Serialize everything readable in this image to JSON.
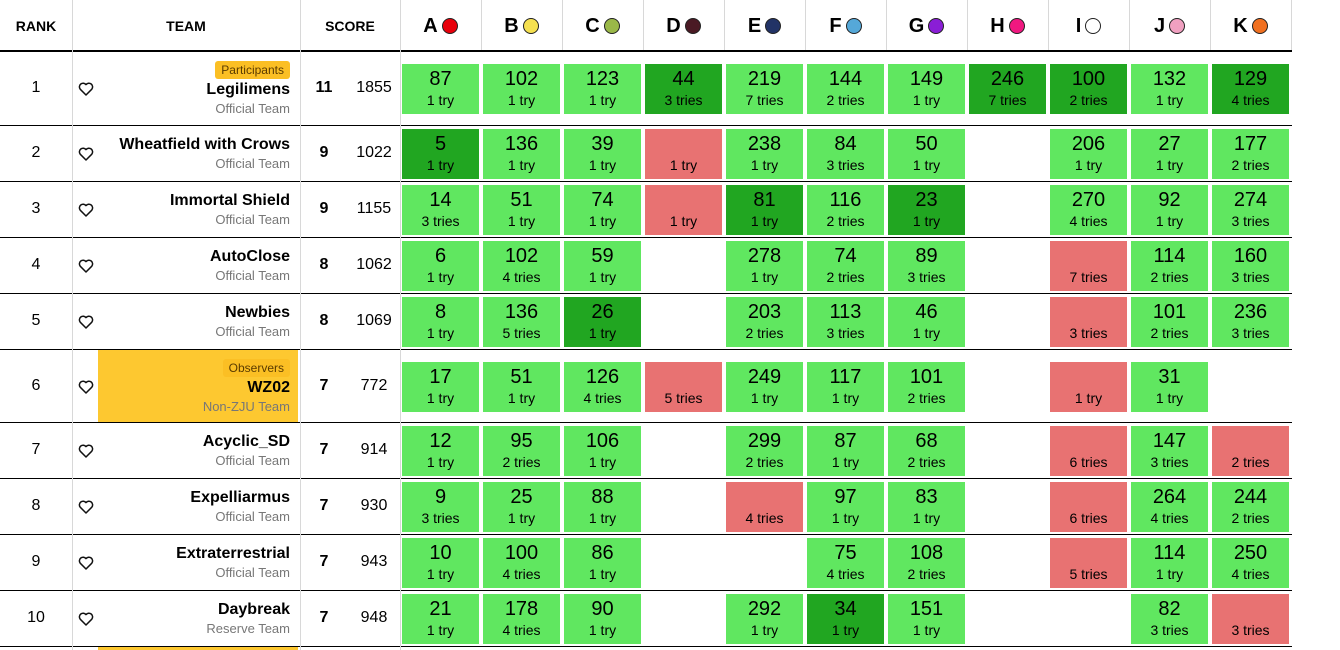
{
  "header": {
    "rank": "RANK",
    "team": "TEAM",
    "score": "SCORE",
    "problems": [
      {
        "letter": "A",
        "color": "#e8000b"
      },
      {
        "letter": "B",
        "color": "#f5e050"
      },
      {
        "letter": "C",
        "color": "#9ab848"
      },
      {
        "letter": "D",
        "color": "#4a1a24"
      },
      {
        "letter": "E",
        "color": "#223366"
      },
      {
        "letter": "F",
        "color": "#55a8d8"
      },
      {
        "letter": "G",
        "color": "#8a1ed6"
      },
      {
        "letter": "H",
        "color": "#f01880"
      },
      {
        "letter": "I",
        "color": "#ffffff"
      },
      {
        "letter": "J",
        "color": "#f0a0c0"
      },
      {
        "letter": "K",
        "color": "#f07020"
      }
    ]
  },
  "rows": [
    {
      "rank": "1",
      "tag": "Participants",
      "name": "Legilimens",
      "org": "Official Team",
      "solved": "11",
      "penalty": "1855",
      "observer": false,
      "cells": [
        [
          "ac",
          "87",
          "1 try"
        ],
        [
          "ac",
          "102",
          "1 try"
        ],
        [
          "ac",
          "123",
          "1 try"
        ],
        [
          "fb",
          "44",
          "3 tries"
        ],
        [
          "ac",
          "219",
          "7 tries"
        ],
        [
          "ac",
          "144",
          "2 tries"
        ],
        [
          "ac",
          "149",
          "1 try"
        ],
        [
          "fb",
          "246",
          "7 tries"
        ],
        [
          "fb",
          "100",
          "2 tries"
        ],
        [
          "ac",
          "132",
          "1 try"
        ],
        [
          "fb",
          "129",
          "4 tries"
        ]
      ]
    },
    {
      "rank": "2",
      "tag": "",
      "name": "Wheatfield with Crows",
      "org": "Official Team",
      "solved": "9",
      "penalty": "1022",
      "observer": false,
      "cells": [
        [
          "fb",
          "5",
          "1 try"
        ],
        [
          "ac",
          "136",
          "1 try"
        ],
        [
          "ac",
          "39",
          "1 try"
        ],
        [
          "wa",
          "",
          "1 try"
        ],
        [
          "ac",
          "238",
          "1 try"
        ],
        [
          "ac",
          "84",
          "3 tries"
        ],
        [
          "ac",
          "50",
          "1 try"
        ],
        [
          "",
          "",
          ""
        ],
        [
          "ac",
          "206",
          "1 try"
        ],
        [
          "ac",
          "27",
          "1 try"
        ],
        [
          "ac",
          "177",
          "2 tries"
        ]
      ]
    },
    {
      "rank": "3",
      "tag": "",
      "name": "Immortal Shield",
      "org": "Official Team",
      "solved": "9",
      "penalty": "1155",
      "observer": false,
      "cells": [
        [
          "ac",
          "14",
          "3 tries"
        ],
        [
          "ac",
          "51",
          "1 try"
        ],
        [
          "ac",
          "74",
          "1 try"
        ],
        [
          "wa",
          "",
          "1 try"
        ],
        [
          "fb",
          "81",
          "1 try"
        ],
        [
          "ac",
          "116",
          "2 tries"
        ],
        [
          "fb",
          "23",
          "1 try"
        ],
        [
          "",
          "",
          ""
        ],
        [
          "ac",
          "270",
          "4 tries"
        ],
        [
          "ac",
          "92",
          "1 try"
        ],
        [
          "ac",
          "274",
          "3 tries"
        ]
      ]
    },
    {
      "rank": "4",
      "tag": "",
      "name": "AutoClose",
      "org": "Official Team",
      "solved": "8",
      "penalty": "1062",
      "observer": false,
      "cells": [
        [
          "ac",
          "6",
          "1 try"
        ],
        [
          "ac",
          "102",
          "4 tries"
        ],
        [
          "ac",
          "59",
          "1 try"
        ],
        [
          "",
          "",
          ""
        ],
        [
          "ac",
          "278",
          "1 try"
        ],
        [
          "ac",
          "74",
          "2 tries"
        ],
        [
          "ac",
          "89",
          "3 tries"
        ],
        [
          "",
          "",
          ""
        ],
        [
          "wa",
          "",
          "7 tries"
        ],
        [
          "ac",
          "114",
          "2 tries"
        ],
        [
          "ac",
          "160",
          "3 tries"
        ]
      ]
    },
    {
      "rank": "5",
      "tag": "",
      "name": "Newbies",
      "org": "Official Team",
      "solved": "8",
      "penalty": "1069",
      "observer": false,
      "cells": [
        [
          "ac",
          "8",
          "1 try"
        ],
        [
          "ac",
          "136",
          "5 tries"
        ],
        [
          "fb",
          "26",
          "1 try"
        ],
        [
          "",
          "",
          ""
        ],
        [
          "ac",
          "203",
          "2 tries"
        ],
        [
          "ac",
          "113",
          "3 tries"
        ],
        [
          "ac",
          "46",
          "1 try"
        ],
        [
          "",
          "",
          ""
        ],
        [
          "wa",
          "",
          "3 tries"
        ],
        [
          "ac",
          "101",
          "2 tries"
        ],
        [
          "ac",
          "236",
          "3 tries"
        ]
      ]
    },
    {
      "rank": "6",
      "tag": "Observers",
      "name": "WZ02",
      "org": "Non-ZJU Team",
      "solved": "7",
      "penalty": "772",
      "observer": true,
      "cells": [
        [
          "ac",
          "17",
          "1 try"
        ],
        [
          "ac",
          "51",
          "1 try"
        ],
        [
          "ac",
          "126",
          "4 tries"
        ],
        [
          "wa",
          "",
          "5 tries"
        ],
        [
          "ac",
          "249",
          "1 try"
        ],
        [
          "ac",
          "117",
          "1 try"
        ],
        [
          "ac",
          "101",
          "2 tries"
        ],
        [
          "",
          "",
          ""
        ],
        [
          "wa",
          "",
          "1 try"
        ],
        [
          "ac",
          "31",
          "1 try"
        ],
        [
          "",
          "",
          ""
        ]
      ]
    },
    {
      "rank": "7",
      "tag": "",
      "name": "Acyclic_SD",
      "org": "Official Team",
      "solved": "7",
      "penalty": "914",
      "observer": false,
      "cells": [
        [
          "ac",
          "12",
          "1 try"
        ],
        [
          "ac",
          "95",
          "2 tries"
        ],
        [
          "ac",
          "106",
          "1 try"
        ],
        [
          "",
          "",
          ""
        ],
        [
          "ac",
          "299",
          "2 tries"
        ],
        [
          "ac",
          "87",
          "1 try"
        ],
        [
          "ac",
          "68",
          "2 tries"
        ],
        [
          "",
          "",
          ""
        ],
        [
          "wa",
          "",
          "6 tries"
        ],
        [
          "ac",
          "147",
          "3 tries"
        ],
        [
          "wa",
          "",
          "2 tries"
        ]
      ]
    },
    {
      "rank": "8",
      "tag": "",
      "name": "Expelliarmus",
      "org": "Official Team",
      "solved": "7",
      "penalty": "930",
      "observer": false,
      "cells": [
        [
          "ac",
          "9",
          "3 tries"
        ],
        [
          "ac",
          "25",
          "1 try"
        ],
        [
          "ac",
          "88",
          "1 try"
        ],
        [
          "",
          "",
          ""
        ],
        [
          "wa",
          "",
          "4 tries"
        ],
        [
          "ac",
          "97",
          "1 try"
        ],
        [
          "ac",
          "83",
          "1 try"
        ],
        [
          "",
          "",
          ""
        ],
        [
          "wa",
          "",
          "6 tries"
        ],
        [
          "ac",
          "264",
          "4 tries"
        ],
        [
          "ac",
          "244",
          "2 tries"
        ]
      ]
    },
    {
      "rank": "9",
      "tag": "",
      "name": "Extraterrestrial",
      "org": "Official Team",
      "solved": "7",
      "penalty": "943",
      "observer": false,
      "cells": [
        [
          "ac",
          "10",
          "1 try"
        ],
        [
          "ac",
          "100",
          "4 tries"
        ],
        [
          "ac",
          "86",
          "1 try"
        ],
        [
          "",
          "",
          ""
        ],
        [
          "",
          "",
          ""
        ],
        [
          "ac",
          "75",
          "4 tries"
        ],
        [
          "ac",
          "108",
          "2 tries"
        ],
        [
          "",
          "",
          ""
        ],
        [
          "wa",
          "",
          "5 tries"
        ],
        [
          "ac",
          "114",
          "1 try"
        ],
        [
          "ac",
          "250",
          "4 tries"
        ]
      ]
    },
    {
      "rank": "10",
      "tag": "",
      "name": "Daybreak",
      "org": "Reserve Team",
      "solved": "7",
      "penalty": "948",
      "observer": false,
      "cells": [
        [
          "ac",
          "21",
          "1 try"
        ],
        [
          "ac",
          "178",
          "4 tries"
        ],
        [
          "ac",
          "90",
          "1 try"
        ],
        [
          "",
          "",
          ""
        ],
        [
          "ac",
          "292",
          "1 try"
        ],
        [
          "fb",
          "34",
          "1 try"
        ],
        [
          "ac",
          "151",
          "1 try"
        ],
        [
          "",
          "",
          ""
        ],
        [
          "",
          "",
          ""
        ],
        [
          "ac",
          "82",
          "3 tries"
        ],
        [
          "wa",
          "",
          "3 tries"
        ]
      ]
    }
  ]
}
